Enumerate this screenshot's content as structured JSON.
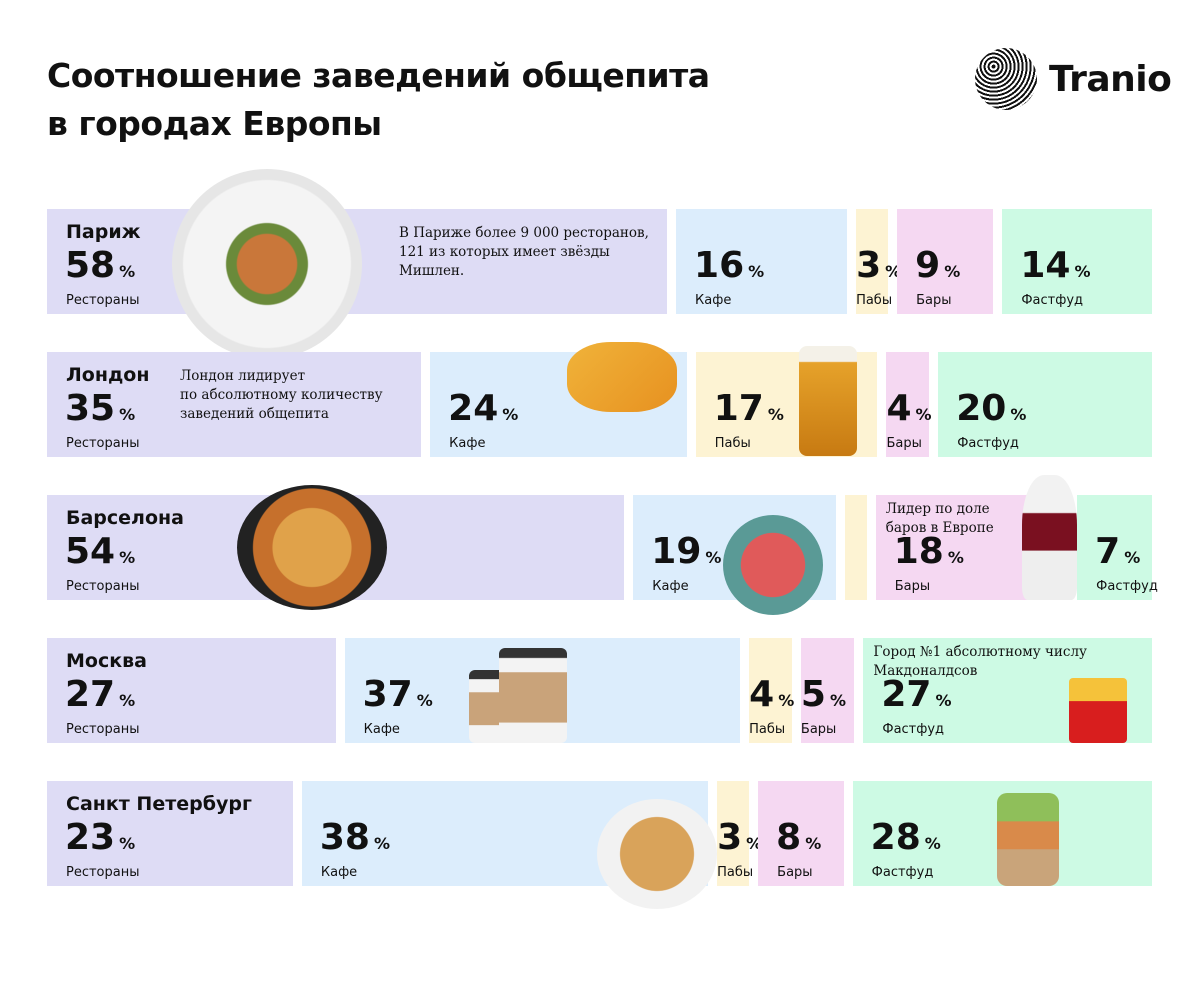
{
  "title_lines": [
    "Соотношение заведений общепита",
    "в городах Европы"
  ],
  "logo": "Tranio",
  "colors": {
    "restaurants": "#dedcf5",
    "cafe": "#dcedfc",
    "pubs": "#fdf3d3",
    "bars": "#f5d8f2",
    "fastfood": "#cdfae4"
  },
  "chart_data": {
    "type": "bar",
    "stacked": true,
    "orientation": "horizontal",
    "unit": "%",
    "categories": [
      "Париж",
      "Лондон",
      "Барселона",
      "Москва",
      "Санкт Петербург"
    ],
    "segment_labels": {
      "restaurants": "Рестораны",
      "cafe": "Кафе",
      "pubs": "Пабы",
      "bars": "Бары",
      "fastfood": "Фастфуд"
    },
    "rows": [
      {
        "city": "Париж",
        "segments": [
          {
            "key": "restaurants",
            "value": 58,
            "note": "В Париже более 9 000 ресторанов,\n121 из которых имеет звёзды\nМишлен."
          },
          {
            "key": "cafe",
            "value": 16
          },
          {
            "key": "pubs",
            "value": 3
          },
          {
            "key": "bars",
            "value": 9
          },
          {
            "key": "fastfood",
            "value": 14
          }
        ]
      },
      {
        "city": "Лондон",
        "segments": [
          {
            "key": "restaurants",
            "value": 35,
            "note": "Лондон лидирует\nпо абсолютному количеству\nзаведений общепита"
          },
          {
            "key": "cafe",
            "value": 24
          },
          {
            "key": "pubs",
            "value": 17
          },
          {
            "key": "bars",
            "value": 4
          },
          {
            "key": "fastfood",
            "value": 20
          }
        ]
      },
      {
        "city": "Барселона",
        "segments": [
          {
            "key": "restaurants",
            "value": 54
          },
          {
            "key": "cafe",
            "value": 19
          },
          {
            "key": "pubs",
            "value": 2,
            "unlabeled": true
          },
          {
            "key": "bars",
            "value": 18,
            "note": "Лидер по доле\nбаров в Европе"
          },
          {
            "key": "fastfood",
            "value": 7
          }
        ]
      },
      {
        "city": "Москва",
        "segments": [
          {
            "key": "restaurants",
            "value": 27
          },
          {
            "key": "cafe",
            "value": 37
          },
          {
            "key": "pubs",
            "value": 4
          },
          {
            "key": "bars",
            "value": 5
          },
          {
            "key": "fastfood",
            "value": 27,
            "note": "Город №1 абсолютному числу\nМакдоналдсов"
          }
        ]
      },
      {
        "city": "Санкт Петербург",
        "segments": [
          {
            "key": "restaurants",
            "value": 23
          },
          {
            "key": "cafe",
            "value": 38
          },
          {
            "key": "pubs",
            "value": 3
          },
          {
            "key": "bars",
            "value": 8
          },
          {
            "key": "fastfood",
            "value": 28
          }
        ]
      }
    ]
  }
}
